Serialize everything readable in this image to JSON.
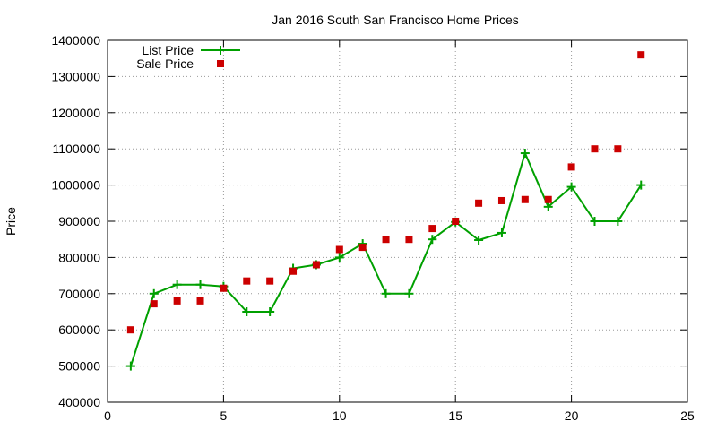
{
  "chart_data": {
    "type": "scatter",
    "title": "Jan 2016 South San Francisco Home Prices",
    "xlabel": "",
    "ylabel": "Price",
    "xlim": [
      0,
      25
    ],
    "ylim": [
      400000,
      1400000
    ],
    "x_ticks": [
      0,
      5,
      10,
      15,
      20,
      25
    ],
    "y_ticks": [
      400000,
      500000,
      600000,
      700000,
      800000,
      900000,
      1000000,
      1100000,
      1200000,
      1300000,
      1400000
    ],
    "grid": true,
    "legend_position": "top-left",
    "series": [
      {
        "name": "List Price",
        "style": "line-plus",
        "color": "#00a000",
        "points": [
          [
            1,
            500000
          ],
          [
            2,
            700000
          ],
          [
            3,
            725000
          ],
          [
            4,
            725000
          ],
          [
            5,
            720000
          ],
          [
            6,
            650000
          ],
          [
            7,
            650000
          ],
          [
            8,
            770000
          ],
          [
            9,
            780000
          ],
          [
            10,
            800000
          ],
          [
            11,
            838000
          ],
          [
            12,
            700000
          ],
          [
            13,
            700000
          ],
          [
            14,
            850000
          ],
          [
            15,
            898000
          ],
          [
            16,
            848000
          ],
          [
            17,
            868000
          ],
          [
            18,
            1088000
          ],
          [
            19,
            940000
          ],
          [
            20,
            995000
          ],
          [
            21,
            900000
          ],
          [
            22,
            900000
          ],
          [
            23,
            1000000
          ]
        ]
      },
      {
        "name": "Sale Price",
        "style": "square",
        "color": "#cc0000",
        "points": [
          [
            1,
            600000
          ],
          [
            2,
            672000
          ],
          [
            3,
            680000
          ],
          [
            4,
            680000
          ],
          [
            5,
            715000
          ],
          [
            6,
            735000
          ],
          [
            7,
            735000
          ],
          [
            8,
            762000
          ],
          [
            9,
            780000
          ],
          [
            10,
            822000
          ],
          [
            11,
            828000
          ],
          [
            12,
            850000
          ],
          [
            13,
            850000
          ],
          [
            14,
            880000
          ],
          [
            15,
            900000
          ],
          [
            16,
            950000
          ],
          [
            17,
            957000
          ],
          [
            18,
            960000
          ],
          [
            19,
            960000
          ],
          [
            20,
            1050000
          ],
          [
            21,
            1100000
          ],
          [
            22,
            1100000
          ],
          [
            23,
            1360000
          ]
        ]
      }
    ]
  }
}
